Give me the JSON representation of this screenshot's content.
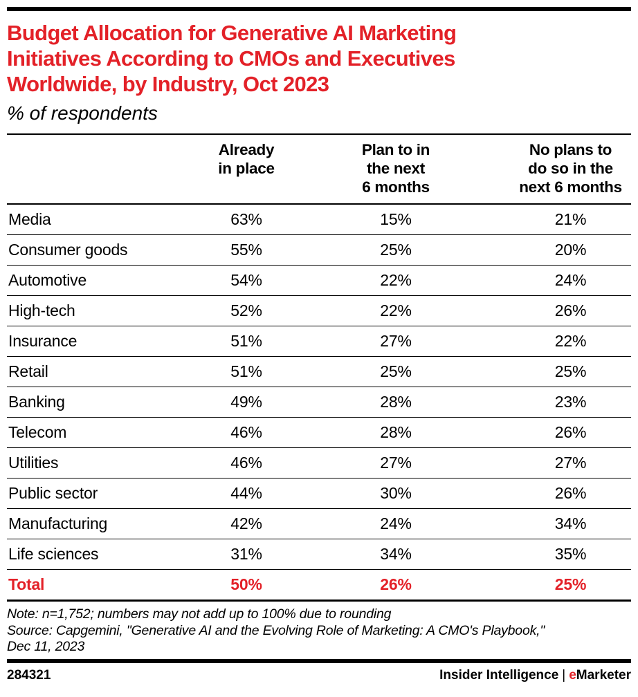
{
  "page": {
    "title_lines": [
      "Budget Allocation for Generative AI Marketing",
      "Initiatives According to CMOs and Executives",
      "Worldwide, by Industry, Oct 2023"
    ],
    "subtitle": "% of respondents"
  },
  "table": {
    "columns": [
      "Already\nin place",
      "Plan to in\nthe next\n6 months",
      "No plans to\ndo so in the\nnext 6 months"
    ],
    "rows": [
      {
        "label": "Media",
        "values": [
          "63%",
          "15%",
          "21%"
        ]
      },
      {
        "label": "Consumer goods",
        "values": [
          "55%",
          "25%",
          "20%"
        ]
      },
      {
        "label": "Automotive",
        "values": [
          "54%",
          "22%",
          "24%"
        ]
      },
      {
        "label": "High-tech",
        "values": [
          "52%",
          "22%",
          "26%"
        ]
      },
      {
        "label": "Insurance",
        "values": [
          "51%",
          "27%",
          "22%"
        ]
      },
      {
        "label": "Retail",
        "values": [
          "51%",
          "25%",
          "25%"
        ]
      },
      {
        "label": "Banking",
        "values": [
          "49%",
          "28%",
          "23%"
        ]
      },
      {
        "label": "Telecom",
        "values": [
          "46%",
          "28%",
          "26%"
        ]
      },
      {
        "label": "Utilities",
        "values": [
          "46%",
          "27%",
          "27%"
        ]
      },
      {
        "label": "Public sector",
        "values": [
          "44%",
          "30%",
          "26%"
        ]
      },
      {
        "label": "Manufacturing",
        "values": [
          "42%",
          "24%",
          "34%"
        ]
      },
      {
        "label": "Life sciences",
        "values": [
          "31%",
          "34%",
          "35%"
        ]
      }
    ],
    "total": {
      "label": "Total",
      "values": [
        "50%",
        "26%",
        "25%"
      ]
    }
  },
  "notes": {
    "lines": [
      "Note: n=1,752; numbers may not add up to 100% due to rounding",
      "Source: Capgemini, \"Generative AI and the Evolving Role of Marketing: A CMO's Playbook,\"",
      "Dec 11, 2023"
    ]
  },
  "footer": {
    "chart_id": "284321",
    "brand_left": "Insider Intelligence",
    "brand_separator": "|",
    "brand_e": "e",
    "brand_rest": "Marketer"
  },
  "colors": {
    "accent_red": "#e32128",
    "text_black": "#000000",
    "rule_black": "#000000",
    "background": "#ffffff"
  },
  "chart_data": {
    "type": "table",
    "title": "Budget Allocation for Generative AI Marketing Initiatives According to CMOs and Executives Worldwide, by Industry, Oct 2023",
    "subtitle": "% of respondents",
    "unit": "%",
    "columns": [
      "Already in place",
      "Plan to in the next 6 months",
      "No plans to do so in the next 6 months"
    ],
    "categories": [
      "Media",
      "Consumer goods",
      "Automotive",
      "High-tech",
      "Insurance",
      "Retail",
      "Banking",
      "Telecom",
      "Utilities",
      "Public sector",
      "Manufacturing",
      "Life sciences"
    ],
    "series": [
      {
        "name": "Already in place",
        "values": [
          63,
          55,
          54,
          52,
          51,
          51,
          49,
          46,
          46,
          44,
          42,
          31
        ]
      },
      {
        "name": "Plan to in the next 6 months",
        "values": [
          15,
          25,
          22,
          22,
          27,
          25,
          28,
          28,
          27,
          30,
          24,
          34
        ]
      },
      {
        "name": "No plans to do so in the next 6 months",
        "values": [
          21,
          20,
          24,
          26,
          22,
          25,
          23,
          26,
          27,
          26,
          34,
          35
        ]
      }
    ],
    "total_row": {
      "label": "Total",
      "values": [
        50,
        26,
        25
      ]
    },
    "note": "n=1,752; numbers may not add up to 100% due to rounding",
    "source": "Capgemini, \"Generative AI and the Evolving Role of Marketing: A CMO's Playbook,\" Dec 11, 2023",
    "chart_id": "284321"
  }
}
